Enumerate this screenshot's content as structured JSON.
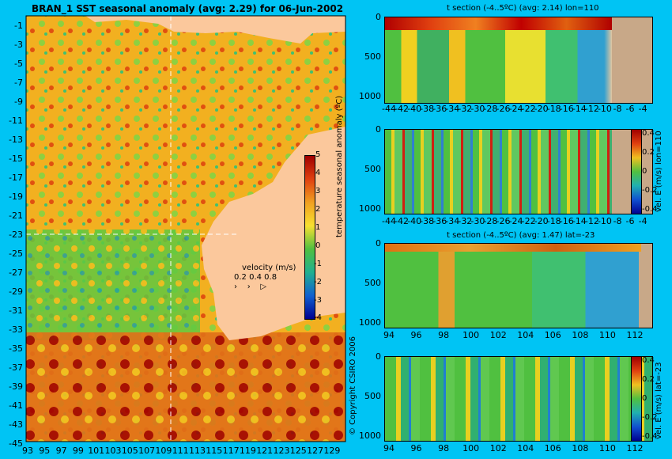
{
  "map": {
    "title": "BRAN_1 SST seasonal anomaly (avg: 2.29) for 06-Jun-2002",
    "lat_ticks": [
      "-1",
      "-3",
      "-5",
      "-7",
      "-9",
      "-11",
      "-13",
      "-15",
      "-17",
      "-19",
      "-21",
      "-23",
      "-25",
      "-27",
      "-29",
      "-31",
      "-33",
      "-35",
      "-37",
      "-39",
      "-41",
      "-43",
      "-45"
    ],
    "lon_ticks": [
      "93",
      "95",
      "97",
      "99",
      "101",
      "103",
      "105",
      "107",
      "109",
      "111",
      "113",
      "115",
      "117",
      "119",
      "121",
      "123",
      "125",
      "127",
      "129"
    ],
    "colorbar_label": "temperature seasonal anomaly (ºC)",
    "colorbar_ticks": [
      "5",
      "4",
      "3",
      "2",
      "1",
      "0",
      "-1",
      "-2",
      "-3",
      "-4"
    ],
    "velocity_label": "velocity (m/s)",
    "velocity_scale": "0.2 0.4 0.8",
    "copyright": "© Copyright CSIRO 2006",
    "colors": {
      "ocean_warm": "#f0a020",
      "land": "#fbc89c",
      "background": "#00c4f4"
    }
  },
  "panels": [
    {
      "title": "t section (-4..5ºC) (avg: 2.14) lon=110",
      "y_ticks": [
        "0",
        "500",
        "1000"
      ],
      "x_ticks": [
        "-44",
        "-42",
        "-40",
        "-38",
        "-36",
        "-34",
        "-32",
        "-30",
        "-28",
        "-26",
        "-24",
        "-22",
        "-20",
        "-18",
        "-16",
        "-14",
        "-12",
        "-10",
        "-8",
        "-6",
        "-4"
      ]
    },
    {
      "title": "",
      "side_label": "vel. E (m/s) lon=110",
      "y_ticks": [
        "0",
        "500",
        "1000"
      ],
      "x_ticks": [
        "-44",
        "-42",
        "-40",
        "-38",
        "-36",
        "-34",
        "-32",
        "-30",
        "-28",
        "-26",
        "-24",
        "-22",
        "-20",
        "-18",
        "-16",
        "-14",
        "-12",
        "-10",
        "-8",
        "-6",
        "-4"
      ],
      "cbar_ticks": [
        "0.4",
        "0.2",
        "0",
        "-0.2",
        "-0.4"
      ]
    },
    {
      "title": "t section (-4..5ºC) (avg: 1.47) lat=-23",
      "y_ticks": [
        "0",
        "500",
        "1000"
      ],
      "x_ticks": [
        "94",
        "96",
        "98",
        "100",
        "102",
        "104",
        "106",
        "108",
        "110",
        "112"
      ]
    },
    {
      "title": "",
      "side_label": "vel. E (m/s) lat=-23",
      "y_ticks": [
        "0",
        "500",
        "1000"
      ],
      "x_ticks": [
        "94",
        "96",
        "98",
        "100",
        "102",
        "104",
        "106",
        "108",
        "110",
        "112"
      ],
      "cbar_ticks": [
        "0.4",
        "0.2",
        "0",
        "-0.2",
        "-0.4"
      ]
    }
  ],
  "chart_data": [
    {
      "type": "heatmap",
      "title": "BRAN_1 SST seasonal anomaly (avg: 2.29) for 06-Jun-2002",
      "xlabel": "",
      "ylabel": "",
      "x_range": [
        93,
        130
      ],
      "y_range": [
        -45,
        0
      ],
      "colorbar_range": [
        -4,
        5
      ],
      "colorbar_label": "temperature seasonal anomaly (ºC)",
      "grid": false
    },
    {
      "type": "heatmap",
      "title": "t section (-4..5ºC) (avg: 2.14) lon=110",
      "x_range": [
        -45,
        -3
      ],
      "y_range": [
        1050,
        0
      ],
      "grid": false
    },
    {
      "type": "heatmap",
      "title": "",
      "x_range": [
        -45,
        -3
      ],
      "y_range": [
        1050,
        0
      ],
      "colorbar_range": [
        -0.4,
        0.4
      ],
      "colorbar_label": "vel. E (m/s) lon=110",
      "grid": false
    },
    {
      "type": "heatmap",
      "title": "t section (-4..5ºC) (avg: 1.47) lat=-23",
      "x_range": [
        93,
        114
      ],
      "y_range": [
        1050,
        0
      ],
      "grid": false
    },
    {
      "type": "heatmap",
      "title": "",
      "x_range": [
        93,
        114
      ],
      "y_range": [
        1050,
        0
      ],
      "colorbar_range": [
        -0.4,
        0.4
      ],
      "colorbar_label": "vel. E (m/s) lat=-23",
      "grid": false
    }
  ]
}
